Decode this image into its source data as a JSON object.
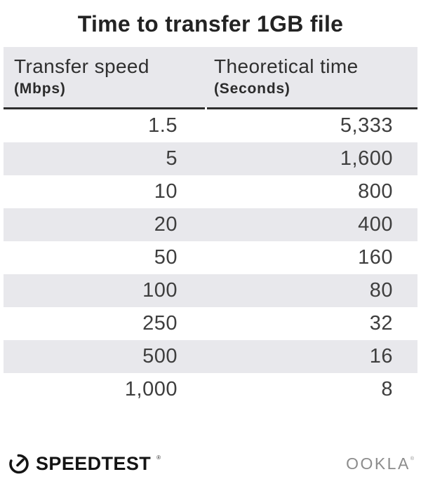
{
  "title": "Time to transfer 1GB file",
  "table": {
    "columns": [
      {
        "label": "Transfer speed",
        "unit": "(Mbps)"
      },
      {
        "label": "Theoretical time",
        "unit": "(Seconds)"
      }
    ],
    "rows": [
      [
        "1.5",
        "5,333"
      ],
      [
        "5",
        "1,600"
      ],
      [
        "10",
        "800"
      ],
      [
        "20",
        "400"
      ],
      [
        "50",
        "160"
      ],
      [
        "100",
        "80"
      ],
      [
        "250",
        "32"
      ],
      [
        "500",
        "16"
      ],
      [
        "1,000",
        "8"
      ]
    ]
  },
  "chart_data": {
    "type": "table",
    "title": "Time to transfer 1GB file",
    "columns": [
      "Transfer speed (Mbps)",
      "Theoretical time (Seconds)"
    ],
    "rows": [
      [
        1.5,
        5333
      ],
      [
        5,
        1600
      ],
      [
        10,
        800
      ],
      [
        20,
        400
      ],
      [
        50,
        160
      ],
      [
        100,
        80
      ],
      [
        250,
        32
      ],
      [
        500,
        16
      ],
      [
        1000,
        8
      ]
    ],
    "layout": {
      "striped_rows": true,
      "value_alignment": "right",
      "header_rule": true
    }
  },
  "footer": {
    "speedtest_label": "SPEEDTEST",
    "speedtest_mark": "®",
    "gauge_icon": "speedtest-gauge-icon",
    "ookla_label": "OOKLA",
    "ookla_mark": "®"
  },
  "colors": {
    "header_bg": "#e8e8ec",
    "stripe_bg": "#e8e8ec",
    "divider": "#2e2e2e",
    "title_text": "#232323",
    "body_text": "#3e3e3e",
    "ookla_gray": "#8c8c8c",
    "brand_black": "#141414"
  }
}
